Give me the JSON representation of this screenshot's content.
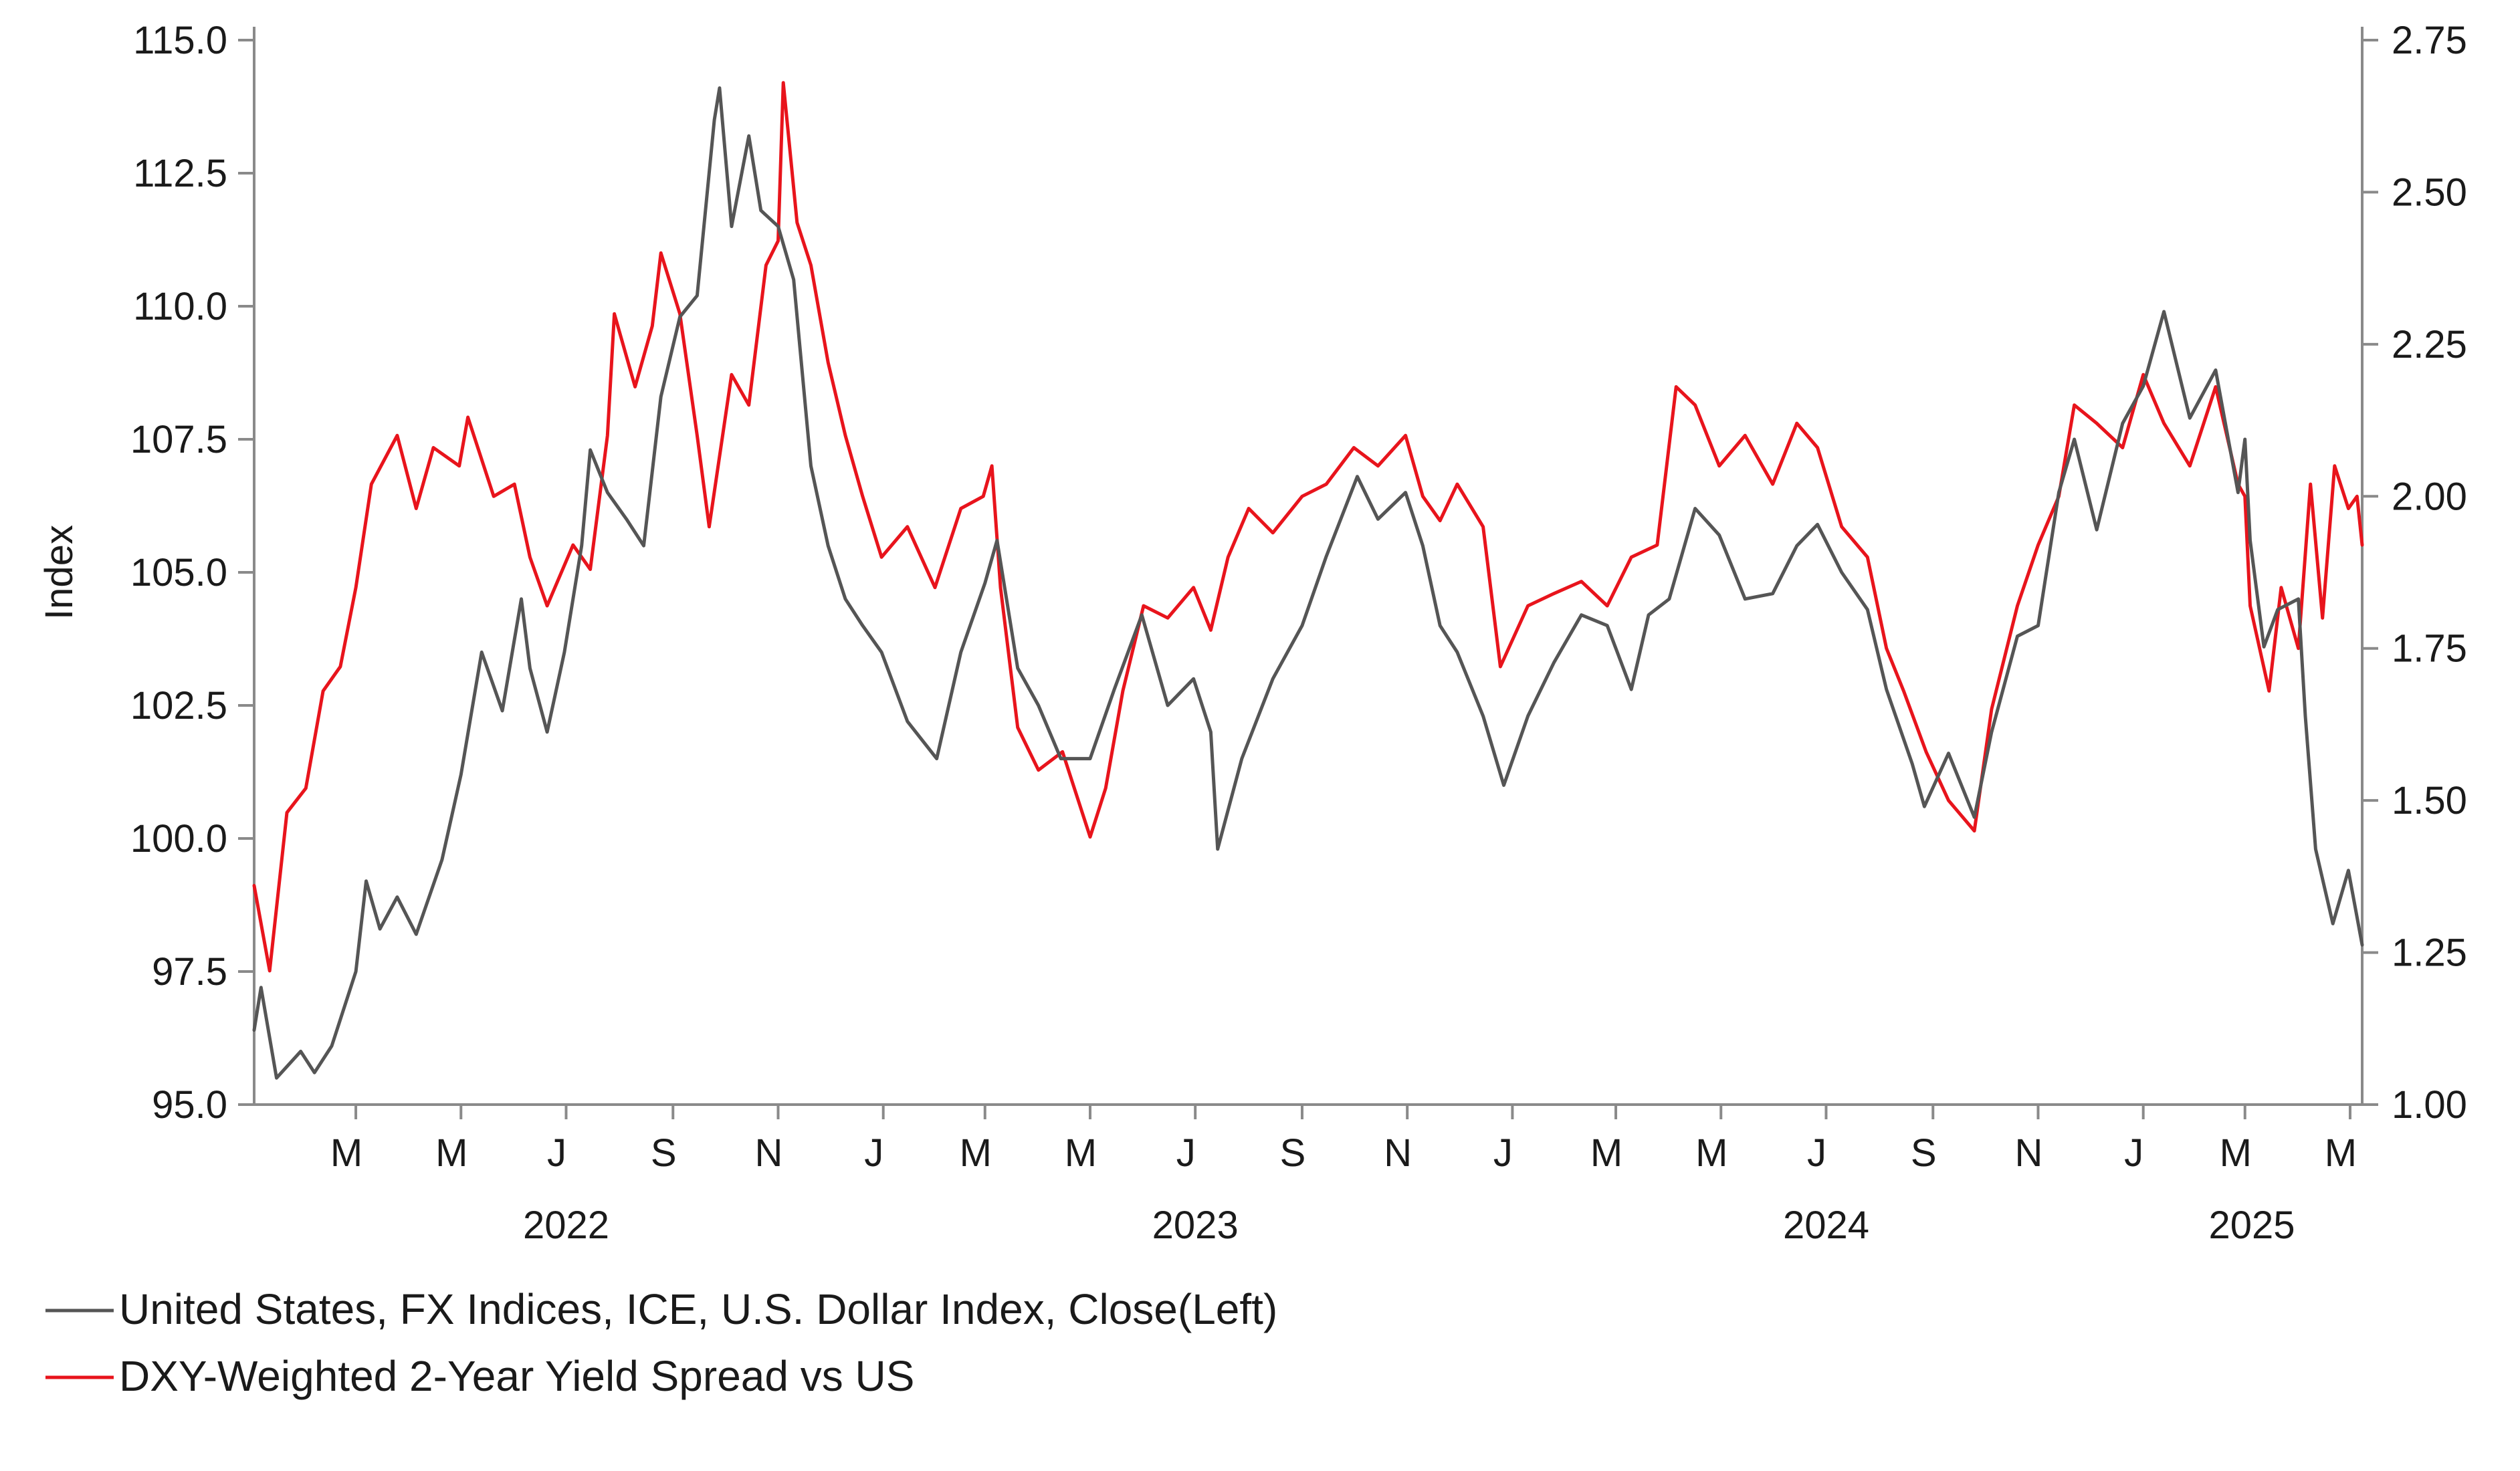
{
  "chart_data": {
    "type": "line",
    "title": "",
    "ylabel_left": "Index",
    "ylabel_right": "",
    "y_left": {
      "min": 95.0,
      "max": 115.0,
      "ticks": [
        "95.0",
        "97.5",
        "100.0",
        "102.5",
        "105.0",
        "107.5",
        "110.0",
        "112.5",
        "115.0"
      ]
    },
    "y_right": {
      "min": 1.0,
      "max": 2.75,
      "ticks": [
        "1.00",
        "1.25",
        "1.50",
        "1.75",
        "2.00",
        "2.25",
        "2.50",
        "2.75"
      ]
    },
    "x_range": [
      "2022-01-01",
      "2025-05-08"
    ],
    "x_month_ticks": [
      {
        "date": "2022-03-01",
        "label": "M"
      },
      {
        "date": "2022-05-01",
        "label": "M"
      },
      {
        "date": "2022-07-01",
        "label": "J"
      },
      {
        "date": "2022-09-01",
        "label": "S"
      },
      {
        "date": "2022-11-01",
        "label": "N"
      },
      {
        "date": "2023-01-01",
        "label": "J"
      },
      {
        "date": "2023-03-01",
        "label": "M"
      },
      {
        "date": "2023-05-01",
        "label": "M"
      },
      {
        "date": "2023-07-01",
        "label": "J"
      },
      {
        "date": "2023-09-01",
        "label": "S"
      },
      {
        "date": "2023-11-01",
        "label": "N"
      },
      {
        "date": "2024-01-01",
        "label": "J"
      },
      {
        "date": "2024-03-01",
        "label": "M"
      },
      {
        "date": "2024-05-01",
        "label": "M"
      },
      {
        "date": "2024-07-01",
        "label": "J"
      },
      {
        "date": "2024-09-01",
        "label": "S"
      },
      {
        "date": "2024-11-01",
        "label": "N"
      },
      {
        "date": "2025-01-01",
        "label": "J"
      },
      {
        "date": "2025-03-01",
        "label": "M"
      },
      {
        "date": "2025-05-01",
        "label": "M"
      }
    ],
    "x_year_labels": [
      {
        "date": "2022-07-01",
        "label": "2022"
      },
      {
        "date": "2023-07-01",
        "label": "2023"
      },
      {
        "date": "2024-07-01",
        "label": "2024"
      },
      {
        "date": "2025-03-05",
        "label": "2025"
      }
    ],
    "series": [
      {
        "name": "United States, FX Indices, ICE, U.S. Dollar Index, Close(Left)",
        "axis": "left",
        "color": "#555555",
        "points": [
          [
            "2022-01-01",
            96.4
          ],
          [
            "2022-01-05",
            97.2
          ],
          [
            "2022-01-14",
            95.5
          ],
          [
            "2022-01-28",
            96.0
          ],
          [
            "2022-02-05",
            95.6
          ],
          [
            "2022-02-15",
            96.1
          ],
          [
            "2022-03-01",
            97.5
          ],
          [
            "2022-03-07",
            99.2
          ],
          [
            "2022-03-15",
            98.3
          ],
          [
            "2022-03-25",
            98.9
          ],
          [
            "2022-04-05",
            98.2
          ],
          [
            "2022-04-20",
            99.6
          ],
          [
            "2022-05-01",
            101.2
          ],
          [
            "2022-05-13",
            103.5
          ],
          [
            "2022-05-25",
            102.4
          ],
          [
            "2022-06-05",
            104.5
          ],
          [
            "2022-06-10",
            103.2
          ],
          [
            "2022-06-20",
            102.0
          ],
          [
            "2022-06-30",
            103.5
          ],
          [
            "2022-07-10",
            105.5
          ],
          [
            "2022-07-15",
            107.3
          ],
          [
            "2022-07-25",
            106.5
          ],
          [
            "2022-08-05",
            106.0
          ],
          [
            "2022-08-15",
            105.5
          ],
          [
            "2022-08-25",
            108.3
          ],
          [
            "2022-09-05",
            109.8
          ],
          [
            "2022-09-15",
            110.2
          ],
          [
            "2022-09-25",
            113.5
          ],
          [
            "2022-09-28",
            114.1
          ],
          [
            "2022-10-05",
            111.5
          ],
          [
            "2022-10-15",
            113.2
          ],
          [
            "2022-10-22",
            111.8
          ],
          [
            "2022-11-01",
            111.5
          ],
          [
            "2022-11-10",
            110.5
          ],
          [
            "2022-11-20",
            107.0
          ],
          [
            "2022-11-30",
            105.5
          ],
          [
            "2022-12-10",
            104.5
          ],
          [
            "2022-12-20",
            104.0
          ],
          [
            "2022-12-31",
            103.5
          ],
          [
            "2023-01-15",
            102.2
          ],
          [
            "2023-02-01",
            101.5
          ],
          [
            "2023-02-15",
            103.5
          ],
          [
            "2023-03-01",
            104.8
          ],
          [
            "2023-03-08",
            105.6
          ],
          [
            "2023-03-20",
            103.2
          ],
          [
            "2023-04-01",
            102.5
          ],
          [
            "2023-04-14",
            101.5
          ],
          [
            "2023-05-01",
            101.5
          ],
          [
            "2023-05-15",
            102.8
          ],
          [
            "2023-05-31",
            104.2
          ],
          [
            "2023-06-15",
            102.5
          ],
          [
            "2023-06-30",
            103.0
          ],
          [
            "2023-07-10",
            102.0
          ],
          [
            "2023-07-14",
            99.8
          ],
          [
            "2023-07-28",
            101.5
          ],
          [
            "2023-08-15",
            103.0
          ],
          [
            "2023-09-01",
            104.0
          ],
          [
            "2023-09-15",
            105.3
          ],
          [
            "2023-10-03",
            106.8
          ],
          [
            "2023-10-15",
            106.0
          ],
          [
            "2023-10-31",
            106.5
          ],
          [
            "2023-11-10",
            105.5
          ],
          [
            "2023-11-20",
            104.0
          ],
          [
            "2023-11-30",
            103.5
          ],
          [
            "2023-12-15",
            102.3
          ],
          [
            "2023-12-27",
            101.0
          ],
          [
            "2024-01-10",
            102.3
          ],
          [
            "2024-01-25",
            103.3
          ],
          [
            "2024-02-10",
            104.2
          ],
          [
            "2024-02-25",
            104.0
          ],
          [
            "2024-03-10",
            102.8
          ],
          [
            "2024-03-20",
            104.2
          ],
          [
            "2024-04-01",
            104.5
          ],
          [
            "2024-04-16",
            106.2
          ],
          [
            "2024-04-30",
            105.7
          ],
          [
            "2024-05-15",
            104.5
          ],
          [
            "2024-05-31",
            104.6
          ],
          [
            "2024-06-14",
            105.5
          ],
          [
            "2024-06-26",
            105.9
          ],
          [
            "2024-07-10",
            105.0
          ],
          [
            "2024-07-25",
            104.3
          ],
          [
            "2024-08-05",
            102.8
          ],
          [
            "2024-08-20",
            101.4
          ],
          [
            "2024-08-27",
            100.6
          ],
          [
            "2024-09-10",
            101.6
          ],
          [
            "2024-09-25",
            100.4
          ],
          [
            "2024-10-05",
            102.0
          ],
          [
            "2024-10-20",
            103.8
          ],
          [
            "2024-11-01",
            104.0
          ],
          [
            "2024-11-13",
            106.5
          ],
          [
            "2024-11-22",
            107.5
          ],
          [
            "2024-12-05",
            105.8
          ],
          [
            "2024-12-20",
            107.8
          ],
          [
            "2025-01-01",
            108.5
          ],
          [
            "2025-01-13",
            109.9
          ],
          [
            "2025-01-28",
            107.9
          ],
          [
            "2025-02-12",
            108.8
          ],
          [
            "2025-02-25",
            106.5
          ],
          [
            "2025-03-01",
            107.5
          ],
          [
            "2025-03-04",
            105.6
          ],
          [
            "2025-03-12",
            103.6
          ],
          [
            "2025-03-20",
            104.3
          ],
          [
            "2025-04-01",
            104.5
          ],
          [
            "2025-04-05",
            102.3
          ],
          [
            "2025-04-11",
            99.8
          ],
          [
            "2025-04-21",
            98.4
          ],
          [
            "2025-04-30",
            99.4
          ],
          [
            "2025-05-08",
            98.0
          ]
        ]
      },
      {
        "name": "DXY-Weighted 2-Year Yield Spread vs US",
        "axis": "right",
        "color": "#e8141c",
        "points": [
          [
            "2022-01-01",
            1.36
          ],
          [
            "2022-01-10",
            1.22
          ],
          [
            "2022-01-20",
            1.48
          ],
          [
            "2022-01-31",
            1.52
          ],
          [
            "2022-02-10",
            1.68
          ],
          [
            "2022-02-20",
            1.72
          ],
          [
            "2022-03-01",
            1.85
          ],
          [
            "2022-03-10",
            2.02
          ],
          [
            "2022-03-25",
            2.1
          ],
          [
            "2022-04-05",
            1.98
          ],
          [
            "2022-04-15",
            2.08
          ],
          [
            "2022-04-30",
            2.05
          ],
          [
            "2022-05-05",
            2.13
          ],
          [
            "2022-05-20",
            2.0
          ],
          [
            "2022-06-01",
            2.02
          ],
          [
            "2022-06-10",
            1.9
          ],
          [
            "2022-06-20",
            1.82
          ],
          [
            "2022-07-05",
            1.92
          ],
          [
            "2022-07-15",
            1.88
          ],
          [
            "2022-07-25",
            2.1
          ],
          [
            "2022-07-29",
            2.3
          ],
          [
            "2022-08-10",
            2.18
          ],
          [
            "2022-08-20",
            2.28
          ],
          [
            "2022-08-25",
            2.4
          ],
          [
            "2022-09-05",
            2.3
          ],
          [
            "2022-09-15",
            2.1
          ],
          [
            "2022-09-22",
            1.95
          ],
          [
            "2022-10-05",
            2.2
          ],
          [
            "2022-10-15",
            2.15
          ],
          [
            "2022-10-25",
            2.38
          ],
          [
            "2022-11-01",
            2.42
          ],
          [
            "2022-11-04",
            2.68
          ],
          [
            "2022-11-12",
            2.45
          ],
          [
            "2022-11-20",
            2.38
          ],
          [
            "2022-11-30",
            2.22
          ],
          [
            "2022-12-10",
            2.1
          ],
          [
            "2022-12-20",
            2.0
          ],
          [
            "2022-12-31",
            1.9
          ],
          [
            "2023-01-15",
            1.95
          ],
          [
            "2023-01-31",
            1.85
          ],
          [
            "2023-02-15",
            1.98
          ],
          [
            "2023-02-28",
            2.0
          ],
          [
            "2023-03-05",
            2.05
          ],
          [
            "2023-03-10",
            1.85
          ],
          [
            "2023-03-20",
            1.62
          ],
          [
            "2023-04-01",
            1.55
          ],
          [
            "2023-04-15",
            1.58
          ],
          [
            "2023-05-01",
            1.44
          ],
          [
            "2023-05-10",
            1.52
          ],
          [
            "2023-05-20",
            1.68
          ],
          [
            "2023-06-01",
            1.82
          ],
          [
            "2023-06-15",
            1.8
          ],
          [
            "2023-06-30",
            1.85
          ],
          [
            "2023-07-10",
            1.78
          ],
          [
            "2023-07-20",
            1.9
          ],
          [
            "2023-08-01",
            1.98
          ],
          [
            "2023-08-15",
            1.94
          ],
          [
            "2023-09-01",
            2.0
          ],
          [
            "2023-09-15",
            2.02
          ],
          [
            "2023-10-01",
            2.08
          ],
          [
            "2023-10-15",
            2.05
          ],
          [
            "2023-10-31",
            2.1
          ],
          [
            "2023-11-10",
            2.0
          ],
          [
            "2023-11-20",
            1.96
          ],
          [
            "2023-11-30",
            2.02
          ],
          [
            "2023-12-15",
            1.95
          ],
          [
            "2023-12-25",
            1.72
          ],
          [
            "2024-01-10",
            1.82
          ],
          [
            "2024-01-25",
            1.84
          ],
          [
            "2024-02-10",
            1.86
          ],
          [
            "2024-02-25",
            1.82
          ],
          [
            "2024-03-10",
            1.9
          ],
          [
            "2024-03-25",
            1.92
          ],
          [
            "2024-04-05",
            2.18
          ],
          [
            "2024-04-16",
            2.15
          ],
          [
            "2024-04-30",
            2.05
          ],
          [
            "2024-05-15",
            2.1
          ],
          [
            "2024-05-31",
            2.02
          ],
          [
            "2024-06-14",
            2.12
          ],
          [
            "2024-06-26",
            2.08
          ],
          [
            "2024-07-10",
            1.95
          ],
          [
            "2024-07-25",
            1.9
          ],
          [
            "2024-08-05",
            1.75
          ],
          [
            "2024-08-15",
            1.68
          ],
          [
            "2024-08-28",
            1.58
          ],
          [
            "2024-09-10",
            1.5
          ],
          [
            "2024-09-25",
            1.45
          ],
          [
            "2024-10-05",
            1.65
          ],
          [
            "2024-10-20",
            1.82
          ],
          [
            "2024-11-01",
            1.92
          ],
          [
            "2024-11-13",
            2.0
          ],
          [
            "2024-11-22",
            2.15
          ],
          [
            "2024-12-05",
            2.12
          ],
          [
            "2024-12-20",
            2.08
          ],
          [
            "2025-01-01",
            2.2
          ],
          [
            "2025-01-13",
            2.12
          ],
          [
            "2025-01-28",
            2.05
          ],
          [
            "2025-02-12",
            2.18
          ],
          [
            "2025-02-25",
            2.02
          ],
          [
            "2025-03-01",
            2.0
          ],
          [
            "2025-03-04",
            1.82
          ],
          [
            "2025-03-15",
            1.68
          ],
          [
            "2025-03-22",
            1.85
          ],
          [
            "2025-04-01",
            1.75
          ],
          [
            "2025-04-08",
            2.02
          ],
          [
            "2025-04-15",
            1.8
          ],
          [
            "2025-04-22",
            2.05
          ],
          [
            "2025-04-30",
            1.98
          ],
          [
            "2025-05-05",
            2.0
          ],
          [
            "2025-05-08",
            1.92
          ]
        ]
      }
    ],
    "legend": {
      "position": "bottom-left",
      "entries": [
        "United States, FX Indices, ICE, U.S. Dollar Index, Close(Left)",
        "DXY-Weighted 2-Year Yield Spread vs US"
      ]
    },
    "grid": false
  }
}
